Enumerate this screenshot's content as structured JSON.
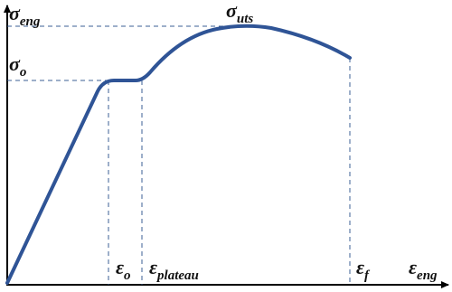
{
  "labels": {
    "y_axis": {
      "symbol": "σ",
      "subscript": "eng"
    },
    "uts": {
      "symbol": "σ",
      "subscript": "uts"
    },
    "yield": {
      "symbol": "σ",
      "subscript": "o"
    },
    "yield_strain": {
      "symbol": "ε",
      "subscript": "o"
    },
    "plateau_strain": {
      "symbol": "ε",
      "subscript": "plateau"
    },
    "fracture_strain": {
      "symbol": "ε",
      "subscript": "f"
    },
    "x_axis": {
      "symbol": "ε",
      "subscript": "eng"
    }
  }
}
